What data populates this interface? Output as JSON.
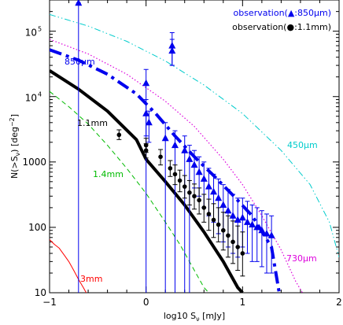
{
  "chart_data": {
    "type": "line",
    "xlabel": "log10 S",
    "xlabel_sub": "ν",
    "xlabel_unit": " [mJy]",
    "ylabel": "N(>S",
    "ylabel_sub": "ν",
    "ylabel_unit": ") [deg",
    "ylabel_sup": "−2",
    "ylabel_close": "]",
    "xlim": [
      -1,
      2
    ],
    "ylim": [
      10,
      300000
    ],
    "yscale": "log",
    "x_ticks": [
      {
        "value": -1,
        "label": "−1"
      },
      {
        "value": 0,
        "label": "0"
      },
      {
        "value": 1,
        "label": "1"
      },
      {
        "value": 2,
        "label": "2"
      }
    ],
    "y_ticks": [
      {
        "value": 10,
        "label": "10"
      },
      {
        "value": 100,
        "label": "100"
      },
      {
        "value": 1000,
        "label": "1000"
      },
      {
        "value": 10000,
        "label": "10",
        "exp": "4"
      },
      {
        "value": 100000,
        "label": "10",
        "exp": "5"
      }
    ],
    "legend": {
      "placement": "top-right",
      "entries": [
        {
          "label": "observation(▲:850μm)",
          "color": "#0000ee"
        },
        {
          "label": "observation(●:1.1mm)",
          "color": "#000000"
        }
      ]
    },
    "series": [
      {
        "label": "850μm",
        "color": "#0000ee",
        "style": "dashdot-thick",
        "x": [
          -1.0,
          -0.7,
          -0.4,
          -0.1,
          0.1,
          0.3,
          0.5,
          0.7,
          0.9,
          1.1,
          1.3,
          1.38
        ],
        "y": [
          52000,
          36000,
          22000,
          11000,
          5500,
          2500,
          1200,
          620,
          310,
          150,
          50,
          10
        ]
      },
      {
        "label": "1.1mm",
        "color": "#000000",
        "style": "solid-thick",
        "x": [
          -1.0,
          -0.7,
          -0.4,
          -0.1,
          0.0,
          0.2,
          0.4,
          0.6,
          0.8,
          0.95,
          1.0
        ],
        "y": [
          25000,
          13000,
          6000,
          2200,
          1100,
          500,
          220,
          85,
          30,
          12,
          10
        ]
      },
      {
        "label": "1.4mm",
        "color": "#00bb00",
        "style": "dashed",
        "x": [
          -1.0,
          -0.8,
          -0.6,
          -0.4,
          -0.2,
          0.0,
          0.2,
          0.35,
          0.5,
          0.6,
          0.65
        ],
        "y": [
          12000,
          7000,
          3800,
          1800,
          800,
          330,
          120,
          55,
          22,
          12,
          10
        ]
      },
      {
        "label": "450μm",
        "color": "#00cccc",
        "style": "dashdotdot",
        "x": [
          -1.0,
          -0.6,
          -0.2,
          0.2,
          0.6,
          1.0,
          1.4,
          1.7,
          1.9,
          2.0
        ],
        "y": [
          180000,
          120000,
          70000,
          35000,
          15000,
          5500,
          1500,
          450,
          120,
          35
        ]
      },
      {
        "label": "730μm",
        "color": "#dd00dd",
        "style": "dotted",
        "x": [
          -1.0,
          -0.6,
          -0.2,
          0.2,
          0.5,
          0.8,
          1.0,
          1.2,
          1.4,
          1.55,
          1.62
        ],
        "y": [
          75000,
          45000,
          22000,
          8500,
          3500,
          1100,
          450,
          150,
          45,
          15,
          10
        ]
      },
      {
        "label": "3mm",
        "color": "#ff0000",
        "style": "solid-thin",
        "x": [
          -1.0,
          -0.95,
          -0.9,
          -0.85,
          -0.8,
          -0.75,
          -0.7,
          -0.65,
          -0.62
        ],
        "y": [
          65,
          55,
          48,
          38,
          30,
          22,
          16,
          12,
          10
        ]
      }
    ],
    "observations_850um": {
      "marker": "triangle",
      "color": "#0000ee",
      "points": [
        {
          "x": -0.7,
          "y": 270000,
          "lo": 10,
          "hi": 270000
        },
        {
          "x": 0.0,
          "y": 16000,
          "lo": 10,
          "hi": 26000
        },
        {
          "x": 0.27,
          "y": 60000,
          "lo": 30000,
          "hi": 95000
        },
        {
          "x": 0.27,
          "y": 50000,
          "lo": 30000,
          "hi": 75000
        },
        {
          "x": 0.0,
          "y": 5500,
          "lo": 2500,
          "hi": 9000
        },
        {
          "x": 0.03,
          "y": 4000,
          "lo": 2000,
          "hi": 6000
        },
        {
          "x": 0.2,
          "y": 2300,
          "lo": 10,
          "hi": 4000
        },
        {
          "x": 0.3,
          "y": 1800,
          "lo": 10,
          "hi": 3000
        },
        {
          "x": 0.4,
          "y": 1500,
          "lo": 10,
          "hi": 2500
        },
        {
          "x": 0.45,
          "y": 1100,
          "lo": 10,
          "hi": 1800
        },
        {
          "x": 0.5,
          "y": 900,
          "lo": 400,
          "hi": 1500
        },
        {
          "x": 0.55,
          "y": 700,
          "lo": 300,
          "hi": 1200
        },
        {
          "x": 0.6,
          "y": 550,
          "lo": 200,
          "hi": 1000
        },
        {
          "x": 0.65,
          "y": 420,
          "lo": 150,
          "hi": 800
        },
        {
          "x": 0.7,
          "y": 350,
          "lo": 120,
          "hi": 650
        },
        {
          "x": 0.75,
          "y": 280,
          "lo": 80,
          "hi": 550
        },
        {
          "x": 0.8,
          "y": 220,
          "lo": 60,
          "hi": 450
        },
        {
          "x": 0.85,
          "y": 180,
          "lo": 50,
          "hi": 380
        },
        {
          "x": 0.9,
          "y": 150,
          "lo": 40,
          "hi": 320
        },
        {
          "x": 0.95,
          "y": 130,
          "lo": 35,
          "hi": 280
        },
        {
          "x": 1.0,
          "y": 140,
          "lo": 50,
          "hi": 280
        },
        {
          "x": 1.05,
          "y": 120,
          "lo": 40,
          "hi": 250
        },
        {
          "x": 1.1,
          "y": 110,
          "lo": 30,
          "hi": 220
        },
        {
          "x": 1.15,
          "y": 100,
          "lo": 30,
          "hi": 200
        },
        {
          "x": 1.2,
          "y": 90,
          "lo": 25,
          "hi": 180
        },
        {
          "x": 1.25,
          "y": 80,
          "lo": 20,
          "hi": 160
        },
        {
          "x": 1.3,
          "y": 75,
          "lo": 20,
          "hi": 150
        }
      ]
    },
    "observations_1p1mm": {
      "marker": "circle",
      "color": "#000000",
      "points": [
        {
          "x": -0.28,
          "y": 2600,
          "lo": 2200,
          "hi": 3100
        },
        {
          "x": 0.0,
          "y": 1800,
          "lo": 1400,
          "hi": 2300
        },
        {
          "x": 0.0,
          "y": 1500,
          "lo": 1150,
          "hi": 1900
        },
        {
          "x": 0.15,
          "y": 1200,
          "lo": 900,
          "hi": 1550
        },
        {
          "x": 0.25,
          "y": 800,
          "lo": 600,
          "hi": 1050
        },
        {
          "x": 0.3,
          "y": 650,
          "lo": 450,
          "hi": 900
        },
        {
          "x": 0.35,
          "y": 520,
          "lo": 350,
          "hi": 750
        },
        {
          "x": 0.4,
          "y": 420,
          "lo": 280,
          "hi": 620
        },
        {
          "x": 0.45,
          "y": 340,
          "lo": 220,
          "hi": 520
        },
        {
          "x": 0.5,
          "y": 300,
          "lo": 190,
          "hi": 460
        },
        {
          "x": 0.55,
          "y": 260,
          "lo": 160,
          "hi": 400
        },
        {
          "x": 0.6,
          "y": 200,
          "lo": 120,
          "hi": 320
        },
        {
          "x": 0.65,
          "y": 160,
          "lo": 90,
          "hi": 270
        },
        {
          "x": 0.7,
          "y": 130,
          "lo": 70,
          "hi": 230
        },
        {
          "x": 0.75,
          "y": 110,
          "lo": 60,
          "hi": 200
        },
        {
          "x": 0.8,
          "y": 90,
          "lo": 45,
          "hi": 170
        },
        {
          "x": 0.85,
          "y": 75,
          "lo": 35,
          "hi": 150
        },
        {
          "x": 0.9,
          "y": 60,
          "lo": 28,
          "hi": 125
        },
        {
          "x": 0.95,
          "y": 50,
          "lo": 22,
          "hi": 105
        },
        {
          "x": 1.0,
          "y": 40,
          "lo": 18,
          "hi": 85
        }
      ]
    }
  }
}
